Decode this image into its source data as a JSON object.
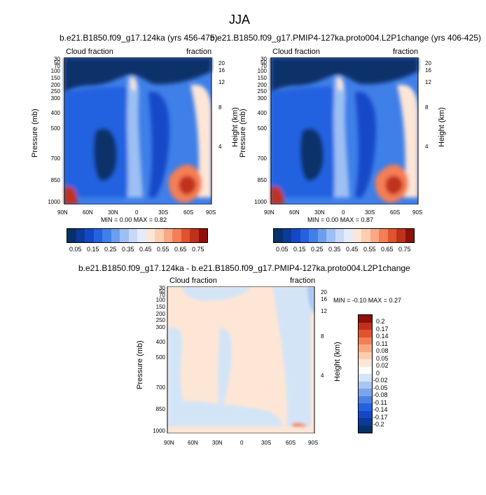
{
  "page": {
    "title": "JJA",
    "panel_a_title": "b.e21.B1850.f09_g17.124ka (yrs 456-475)",
    "panel_b_title": "b.e21.B1850.f09_g17.PMIP4-127ka.proto004.L2P1change (yrs 406-425)",
    "panel_c_title": "b.e21.B1850.f09_g17.124ka - b.e21.B1850.f09_g17.PMIP4-127ka.proto004.L2P1change"
  },
  "chart_data": [
    {
      "type": "heatmap",
      "panel": "a",
      "title": "b.e21.B1850.f09_g17.124ka (yrs 456-475)",
      "left_label": "Cloud fraction",
      "right_label": "fraction",
      "ylabel": "Pressure (mb)",
      "ylabel_right": "Height (km)",
      "x_ticks": [
        "90N",
        "60N",
        "30N",
        "0",
        "30S",
        "60S",
        "90S"
      ],
      "y_ticks": [
        "30",
        "50",
        "70",
        "100",
        "150",
        "200",
        "250",
        "300",
        "400",
        "500",
        "700",
        "850",
        "1000"
      ],
      "y_ticks_right": [
        "20",
        "16",
        "12",
        "8",
        "4"
      ],
      "min_max": "MIN =   0.00  MAX =   0.82",
      "colorbar_labels": [
        "0.05",
        "0.15",
        "0.25",
        "0.35",
        "0.45",
        "0.55",
        "0.65",
        "0.75"
      ],
      "colors": [
        "#08306b",
        "#0a3a9a",
        "#1448c8",
        "#2462e0",
        "#3f7fe8",
        "#6d9eee",
        "#9dbff3",
        "#c6d9f7",
        "#e3ecfa",
        "#fde6d6",
        "#fccdb0",
        "#f9a982",
        "#f47e55",
        "#e0532e",
        "#c0311c",
        "#8e1008"
      ]
    },
    {
      "type": "heatmap",
      "panel": "b",
      "title": "b.e21.B1850.f09_g17.PMIP4-127ka.proto004.L2P1change (yrs 406-425)",
      "left_label": "Cloud fraction",
      "right_label": "fraction",
      "ylabel": "Pressure (mb)",
      "ylabel_right": "Height (km)",
      "x_ticks": [
        "90N",
        "60N",
        "30N",
        "0",
        "30S",
        "60S",
        "90S"
      ],
      "y_ticks": [
        "30",
        "50",
        "70",
        "100",
        "150",
        "200",
        "250",
        "300",
        "400",
        "500",
        "700",
        "850",
        "1000"
      ],
      "y_ticks_right": [
        "20",
        "16",
        "12",
        "8",
        "4"
      ],
      "min_max": "MIN =   0.00  MAX =   0.87",
      "colorbar_labels": [
        "0.05",
        "0.15",
        "0.25",
        "0.35",
        "0.45",
        "0.55",
        "0.65",
        "0.75"
      ]
    },
    {
      "type": "heatmap",
      "panel": "c",
      "title": "b.e21.B1850.f09_g17.124ka - b.e21.B1850.f09_g17.PMIP4-127ka.proto004.L2P1change",
      "left_label": "Cloud fraction",
      "right_label": "fraction",
      "ylabel": "Pressure (mb)",
      "ylabel_right": "Height (km)",
      "x_ticks": [
        "90N",
        "60N",
        "30N",
        "0",
        "30S",
        "60S",
        "90S"
      ],
      "y_ticks": [
        "30",
        "50",
        "70",
        "100",
        "150",
        "200",
        "250",
        "300",
        "400",
        "500",
        "700",
        "850",
        "1000"
      ],
      "y_ticks_right": [
        "20",
        "16",
        "12",
        "8",
        "4"
      ],
      "min_max": "MIN =  -0.10  MAX =   0.27",
      "colorbar_labels": [
        "0.2",
        "0.17",
        "0.14",
        "0.11",
        "0.08",
        "0.05",
        "0.02",
        "0",
        "-0.02",
        "-0.05",
        "-0.08",
        "-0.11",
        "-0.14",
        "-0.17",
        "-0.2"
      ],
      "colors": [
        "#8e1008",
        "#c0311c",
        "#e0532e",
        "#f47e55",
        "#f9a982",
        "#fccdb0",
        "#fde6d6",
        "#ffffff",
        "#d4e4f7",
        "#a9c6f2",
        "#7aa5ec",
        "#4a82e4",
        "#2462e0",
        "#1448c8",
        "#0a3a9a",
        "#08306b"
      ]
    }
  ]
}
